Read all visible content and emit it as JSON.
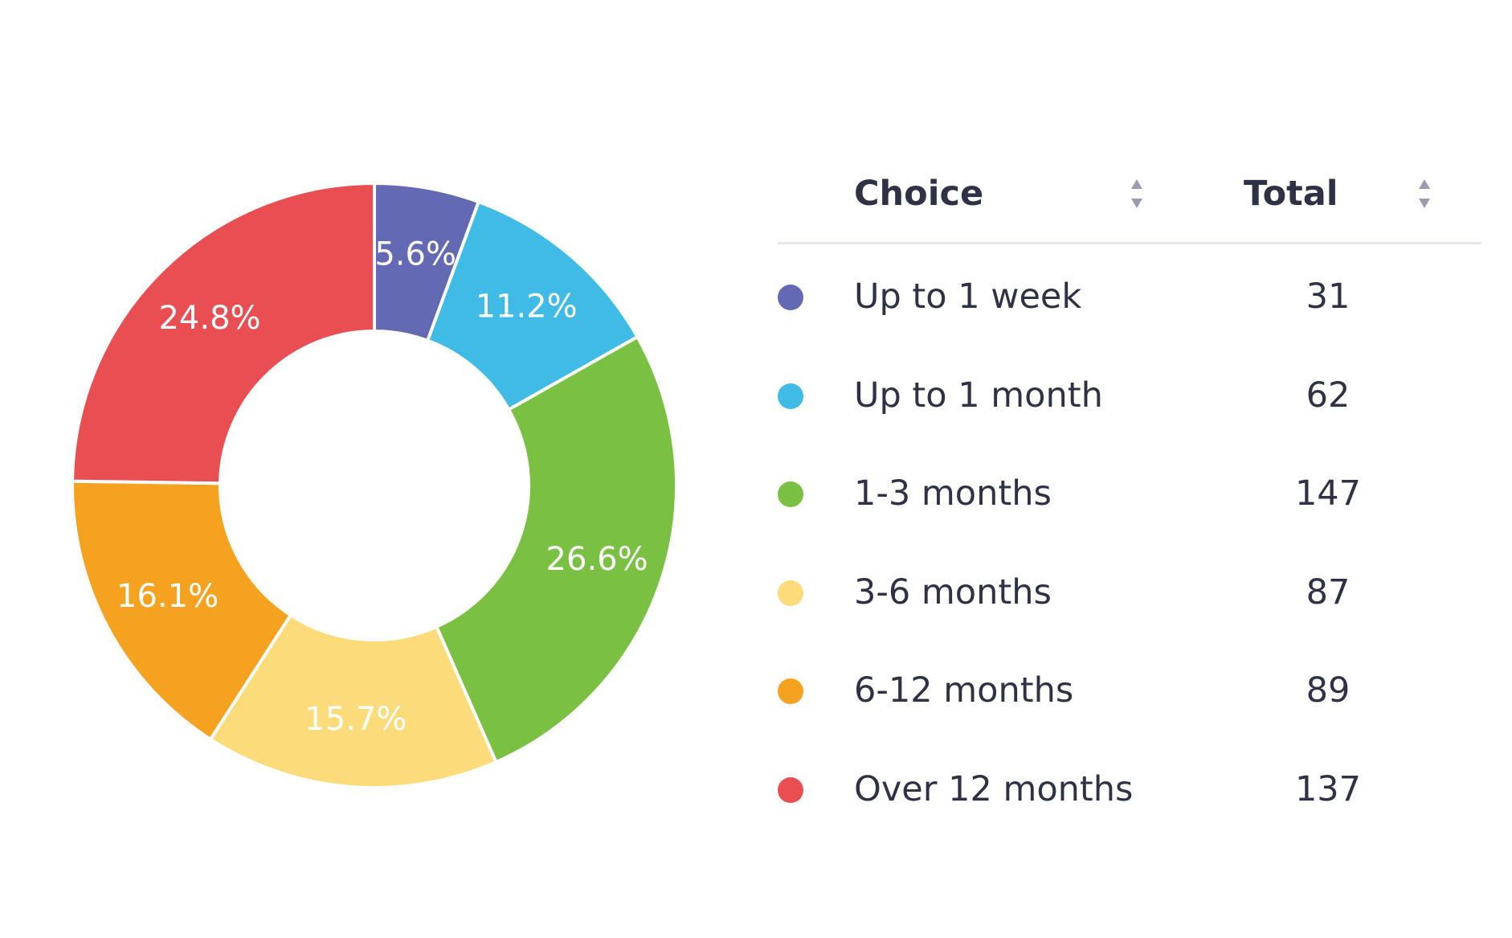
{
  "table": {
    "headers": {
      "choice": "Choice",
      "total": "Total"
    },
    "rows": [
      {
        "label": "Up to 1 week",
        "total": "31",
        "color": "#6369b3"
      },
      {
        "label": "Up to 1 month",
        "total": "62",
        "color": "#3fbbe6"
      },
      {
        "label": "1-3 months",
        "total": "147",
        "color": "#7ac143"
      },
      {
        "label": "3-6 months",
        "total": "87",
        "color": "#fcdc7a"
      },
      {
        "label": "6-12 months",
        "total": "89",
        "color": "#f4a21f"
      },
      {
        "label": "Over 12 months",
        "total": "137",
        "color": "#e84e52"
      }
    ],
    "sort_icon": "sort-arrows-icon"
  },
  "chart_data": {
    "type": "pie",
    "style": "donut",
    "categories": [
      "Up to 1 week",
      "Up to 1 month",
      "1-3 months",
      "3-6 months",
      "6-12 months",
      "Over 12 months"
    ],
    "values": [
      31,
      62,
      147,
      87,
      89,
      137
    ],
    "percent_labels": [
      "5.6%",
      "11.2%",
      "26.6%",
      "15.7%",
      "16.1%",
      "24.8%"
    ],
    "colors": [
      "#6369b3",
      "#3fbbe6",
      "#7ac143",
      "#fcdc7a",
      "#f4a21f",
      "#e84e52"
    ],
    "title": "",
    "legend": "right"
  }
}
